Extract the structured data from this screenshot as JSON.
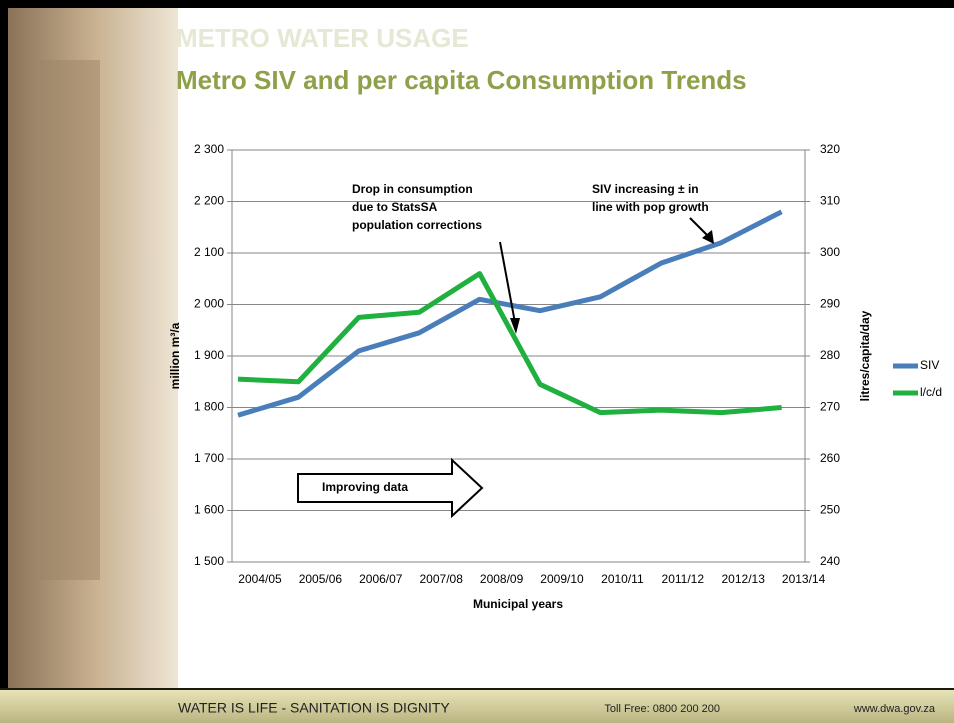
{
  "header": {
    "kicker": "METRO WATER USAGE",
    "title": "Metro SIV and per capita Consumption Trends"
  },
  "chart_data": {
    "type": "line",
    "categories": [
      "2004/05",
      "2005/06",
      "2006/07",
      "2007/08",
      "2008/09",
      "2009/10",
      "2010/11",
      "2011/12",
      "2012/13",
      "2013/14"
    ],
    "series": [
      {
        "name": "SIV",
        "color": "#4a7ebb",
        "values": [
          1785,
          1820,
          1910,
          1945,
          2010,
          1988,
          2015,
          2080,
          2120,
          2180
        ]
      },
      {
        "name": "l/c/d",
        "color": "#1fb040",
        "axis": "y2",
        "values": [
          275.5,
          275,
          287.5,
          288.5,
          296,
          274.5,
          269,
          269.5,
          269,
          270
        ]
      }
    ],
    "ylim": [
      1500,
      2300
    ],
    "yticks": [
      {
        "value": 1500,
        "label": "1 500"
      },
      {
        "value": 1600,
        "label": "1 600"
      },
      {
        "value": 1700,
        "label": "1 700"
      },
      {
        "value": 1800,
        "label": "1 800"
      },
      {
        "value": 1900,
        "label": "1 900"
      },
      {
        "value": 2000,
        "label": "2 000"
      },
      {
        "value": 2100,
        "label": "2 100"
      },
      {
        "value": 2200,
        "label": "2 200"
      },
      {
        "value": 2300,
        "label": "2 300"
      }
    ],
    "y2lim": [
      240,
      320
    ],
    "y2ticks": [
      240,
      250,
      260,
      270,
      280,
      290,
      300,
      310,
      320
    ],
    "grid": true,
    "legend": "right",
    "ylabel": "million m³/a",
    "y2label": "litres/capita/day",
    "xlabel": "Municipal years",
    "annotations": [
      {
        "lines": [
          "Drop in consumption",
          "due to StatsSA",
          "population corrections"
        ]
      },
      {
        "lines": [
          "SIV increasing ± in",
          "line with pop growth"
        ]
      },
      {
        "lines": [
          "Improving data"
        ]
      }
    ]
  },
  "footer": {
    "motto": "WATER IS LIFE - SANITATION IS DIGNITY",
    "phone": "Toll Free: 0800 200 200",
    "website": "www.dwa.gov.za"
  }
}
